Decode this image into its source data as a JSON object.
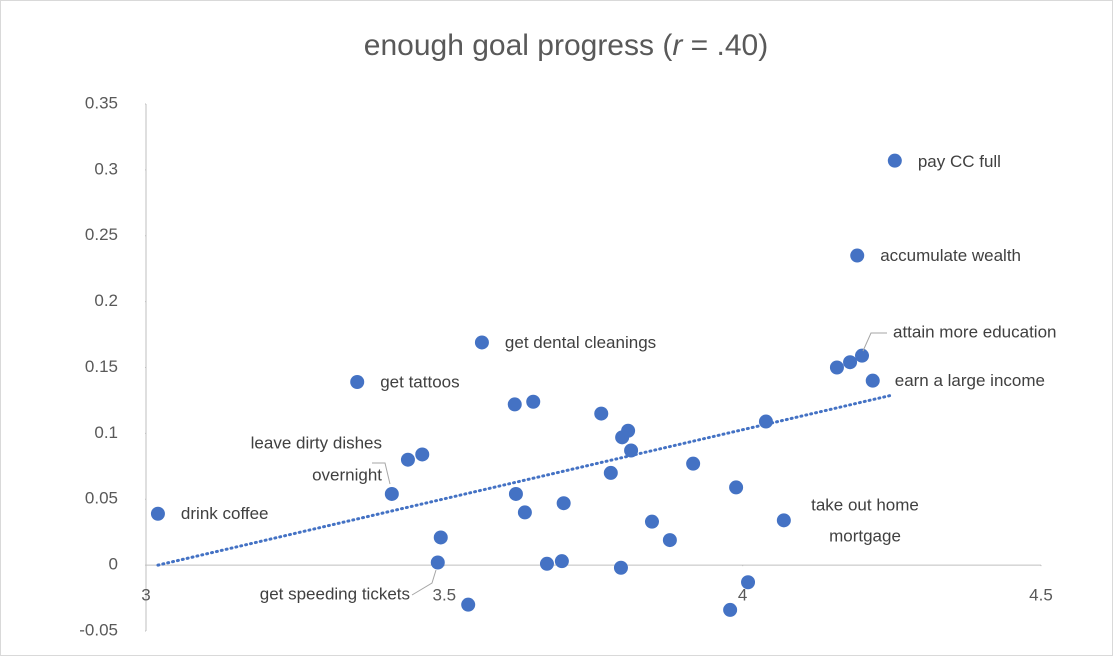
{
  "chart_data": {
    "type": "scatter",
    "title": [
      "enough goal progress (",
      "r",
      " = .40)"
    ],
    "color": "#4472c4",
    "xlim": [
      3,
      4.5
    ],
    "xticks": [
      3,
      3.5,
      4,
      4.5
    ],
    "ylim": [
      -0.05,
      0.35
    ],
    "yticks": [
      -0.05,
      0,
      0.05,
      0.1,
      0.15,
      0.2,
      0.25,
      0.3,
      0.35
    ],
    "grid": false,
    "x": [
      3.02,
      3.354,
      3.412,
      3.439,
      3.463,
      3.494,
      3.489,
      3.54,
      3.563,
      3.618,
      3.649,
      3.62,
      3.635,
      3.672,
      3.697,
      3.7,
      3.763,
      3.779,
      3.798,
      3.808,
      3.813,
      3.796,
      3.848,
      3.878,
      3.917,
      3.989,
      4.009,
      3.979,
      4.039,
      4.069,
      4.158,
      4.18,
      4.2,
      4.218,
      4.192,
      4.255
    ],
    "values": [
      0.039,
      0.139,
      0.054,
      0.08,
      0.084,
      0.021,
      0.002,
      -0.03,
      0.169,
      0.122,
      0.124,
      0.054,
      0.04,
      0.001,
      0.003,
      0.047,
      0.115,
      0.07,
      0.097,
      0.102,
      0.087,
      -0.002,
      0.033,
      0.019,
      0.077,
      0.059,
      -0.013,
      -0.034,
      0.109,
      0.034,
      0.15,
      0.154,
      0.159,
      0.14,
      0.235,
      0.307
    ],
    "trendline": {
      "x": [
        3.02,
        4.25
      ],
      "values": [
        0,
        0.129
      ]
    },
    "annotations": [
      {
        "lines": [
          "drink coffee"
        ],
        "point": 0
      },
      {
        "lines": [
          "get tattoos"
        ],
        "point": 1
      },
      {
        "lines": [
          "leave dirty dishes",
          "overnight"
        ],
        "point": 2
      },
      {
        "lines": [
          "get speeding tickets"
        ],
        "point": 6
      },
      {
        "lines": [
          "get dental cleanings"
        ],
        "point": 8
      },
      {
        "lines": [
          "take out home",
          "mortgage"
        ],
        "point": 29
      },
      {
        "lines": [
          "attain more education"
        ],
        "point": 32
      },
      {
        "lines": [
          "earn a large income"
        ],
        "point": 33
      },
      {
        "lines": [
          "accumulate wealth"
        ],
        "point": 34
      },
      {
        "lines": [
          "pay CC full"
        ],
        "point": 35
      }
    ]
  }
}
